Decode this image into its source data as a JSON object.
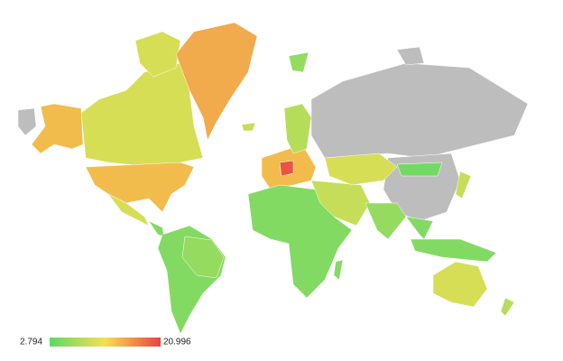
{
  "map": {
    "scale": {
      "min": 2.794,
      "max": 20.996
    },
    "values": [
      14,
      10,
      10,
      14,
      10,
      5,
      15,
      9,
      5,
      6,
      14,
      20,
      8,
      5,
      5,
      9,
      10,
      4,
      6,
      5,
      5,
      9,
      10,
      8,
      6
    ]
  }
}
